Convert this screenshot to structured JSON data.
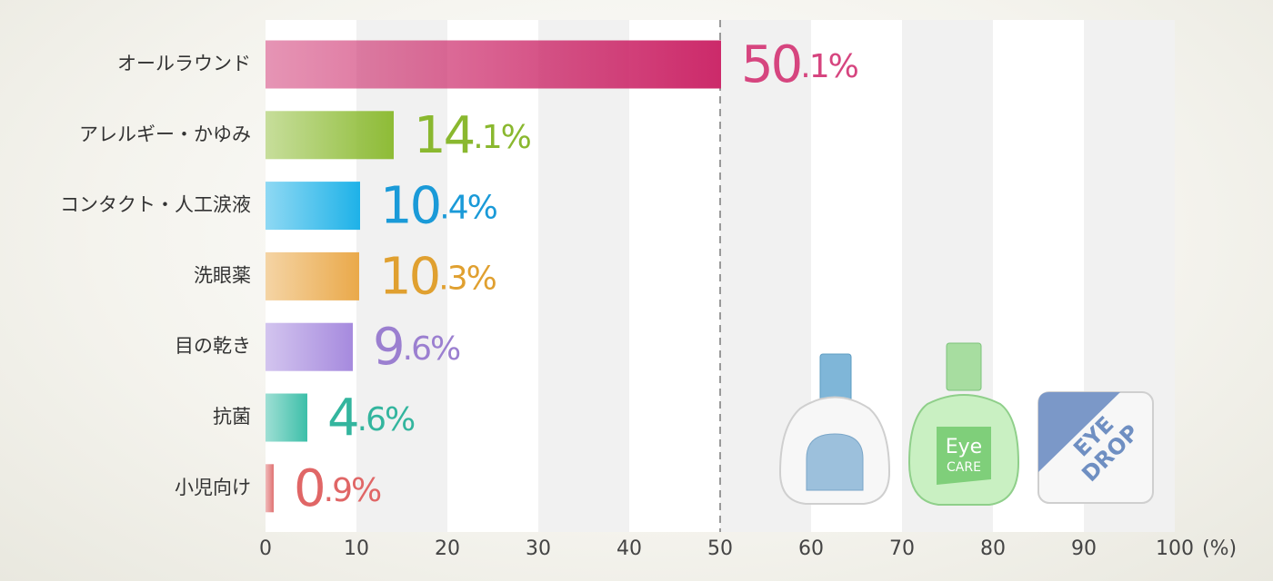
{
  "chart_data": {
    "type": "bar",
    "orientation": "horizontal",
    "categories": [
      "オールラウンド",
      "アレルギー・かゆみ",
      "コンタクト・人工涙液",
      "洗眼薬",
      "目の乾き",
      "抗菌",
      "小児向け"
    ],
    "values": [
      50.1,
      14.1,
      10.4,
      10.3,
      9.6,
      4.6,
      0.9
    ],
    "value_labels": [
      "50.1%",
      "14.1%",
      "10.4%",
      "10.3%",
      "9.6%",
      "4.6%",
      "0.9%"
    ],
    "colors": [
      "#cc2a6a",
      "#8ebc36",
      "#1eb2e8",
      "#eaa94a",
      "#a68ade",
      "#3dbfa9",
      "#e07474"
    ],
    "label_colors": [
      "#d6457f",
      "#8ab82f",
      "#1a9ad8",
      "#e0a030",
      "#9b7fd0",
      "#33b59e",
      "#e06666"
    ],
    "xlim": [
      0,
      100
    ],
    "xticks": [
      0,
      10,
      20,
      30,
      40,
      50,
      60,
      70,
      80,
      90,
      100
    ],
    "x_unit": "(%)",
    "reference_line": 50,
    "illustration": {
      "labels": [
        "Eye",
        "CARE",
        "EYE",
        "DROP"
      ]
    }
  }
}
